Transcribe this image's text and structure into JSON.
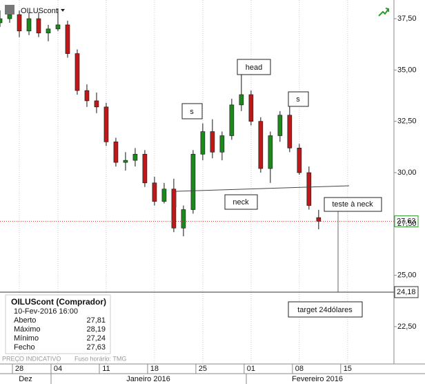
{
  "chart_data": {
    "type": "candlestick",
    "symbol": "OILUScont",
    "open": [
      37.3,
      37.5,
      37.7,
      36.9,
      37.5,
      36.8,
      37.0,
      37.2,
      35.8,
      34.0,
      33.5,
      33.2,
      31.5,
      30.5,
      30.6,
      30.9,
      29.5,
      28.6,
      29.2,
      27.3,
      28.2,
      30.9,
      32.0,
      31.0,
      31.8,
      33.3,
      33.8,
      32.5,
      30.2,
      31.8,
      32.8,
      31.2,
      30.0,
      27.81
    ],
    "high": [
      37.9,
      38.1,
      37.9,
      37.8,
      37.8,
      37.2,
      38.0,
      37.4,
      36.0,
      34.3,
      33.9,
      33.4,
      31.7,
      31.0,
      31.2,
      31.1,
      29.8,
      29.5,
      29.7,
      28.4,
      31.1,
      32.4,
      32.6,
      32.0,
      33.6,
      34.8,
      34.0,
      32.7,
      32.0,
      33.0,
      33.4,
      31.4,
      30.3,
      28.19
    ],
    "low": [
      37.1,
      37.3,
      36.6,
      36.7,
      36.6,
      36.4,
      36.9,
      35.6,
      33.8,
      33.2,
      32.9,
      31.3,
      30.3,
      30.1,
      30.3,
      29.3,
      28.4,
      28.5,
      27.1,
      26.9,
      28.0,
      30.6,
      30.7,
      30.6,
      31.6,
      33.0,
      32.3,
      30.0,
      29.5,
      31.5,
      31.0,
      29.9,
      28.2,
      27.24
    ],
    "close": [
      37.5,
      37.7,
      36.9,
      37.5,
      36.8,
      37.0,
      37.2,
      35.8,
      34.0,
      33.5,
      33.2,
      31.5,
      30.5,
      30.6,
      30.9,
      29.5,
      28.6,
      29.2,
      27.3,
      28.2,
      30.9,
      32.0,
      31.0,
      31.8,
      33.3,
      33.8,
      32.5,
      30.2,
      31.8,
      32.8,
      31.2,
      30.0,
      28.4,
      27.63
    ],
    "up_color": "#1a8a1a",
    "down_color": "#c01818",
    "ylim": [
      20.68,
      38.41
    ],
    "yticks": [
      {
        "value": 22.5,
        "label": "22,50"
      },
      {
        "value": 25,
        "label": "25,00"
      },
      {
        "value": 27.5,
        "label": "27,50"
      },
      {
        "value": 30,
        "label": "30,00"
      },
      {
        "value": 32.5,
        "label": "32,50"
      },
      {
        "value": 35,
        "label": "35,00"
      },
      {
        "value": 37.5,
        "label": "37,50"
      }
    ],
    "xlim": [
      0,
      40.8
    ],
    "xticks": [
      {
        "value": 2,
        "label": "28"
      },
      {
        "value": 6,
        "label": "04"
      },
      {
        "value": 11,
        "label": "11"
      },
      {
        "value": 16,
        "label": "18"
      },
      {
        "value": 21,
        "label": "25"
      },
      {
        "value": 26,
        "label": "01"
      },
      {
        "value": 31,
        "label": "08"
      },
      {
        "value": 36,
        "label": "15"
      }
    ],
    "months": [
      "Dez",
      "Janeiro 2016",
      "Fevereiro 2016"
    ],
    "last_price": {
      "value": 27.63,
      "label": "27,63"
    },
    "target_price": {
      "value": 24.18,
      "label": "24,18"
    },
    "annotations": [
      "s",
      "head",
      "s",
      "neck",
      "teste à neck",
      "target 24dólares"
    ],
    "info": {
      "title": "OILUScont (Comprador)",
      "date": "10-Fev-2016 16:00",
      "rows": [
        [
          "Aberto",
          "27,81"
        ],
        [
          "Máximo",
          "28,19"
        ],
        [
          "Mínimo",
          "27,24"
        ],
        [
          "Fecho",
          "27,63"
        ]
      ]
    },
    "footer": [
      "PREÇO INDICATIVO",
      "Fuso horário: TMG"
    ]
  }
}
